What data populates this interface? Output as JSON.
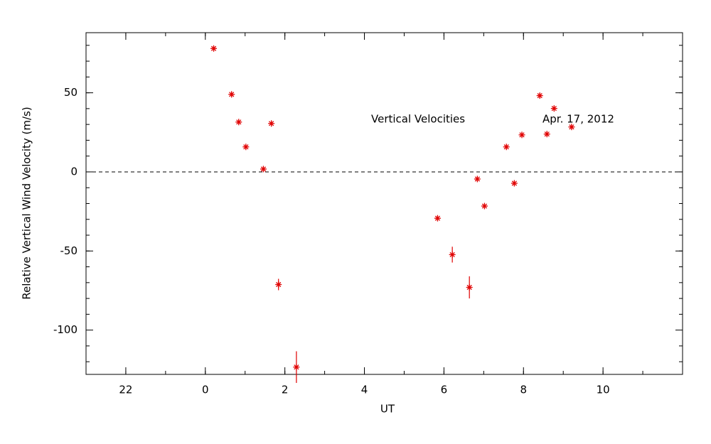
{
  "chart_data": {
    "type": "scatter",
    "xlabel": "UT",
    "ylabel": "Relative Vertical Wind Velocity (m/s)",
    "annotations": [
      "Vertical Velocities",
      "Apr. 17, 2012"
    ],
    "xlim": [
      -3,
      12
    ],
    "ylim": [
      -128,
      88
    ],
    "xticks": [
      {
        "value": -2,
        "label": "22"
      },
      0,
      2,
      4,
      6,
      8,
      10
    ],
    "yticks": [
      -100,
      -50,
      0,
      50
    ],
    "color": "#e00000",
    "series": [
      {
        "name": "Vertical Velocities",
        "x": [
          0.21,
          0.66,
          0.84,
          1.02,
          1.46,
          1.66,
          1.84,
          2.29,
          5.84,
          6.21,
          6.64,
          6.84,
          7.02,
          7.57,
          7.77,
          7.96,
          8.41,
          8.59,
          8.77,
          9.21
        ],
        "values": [
          78,
          49,
          31.5,
          15.8,
          1.8,
          30.6,
          -71.2,
          -123.4,
          -29.3,
          -52.3,
          -73,
          -4.5,
          -21.6,
          15.8,
          -7.2,
          23.4,
          48.2,
          23.9,
          40.1,
          28.4
        ],
        "errors": [
          1.5,
          1.5,
          1.5,
          1.5,
          1.5,
          1.5,
          3.6,
          10,
          1.5,
          5,
          7,
          1.5,
          1.5,
          1.5,
          1.5,
          1.5,
          1.5,
          1.5,
          1.5,
          1.5
        ]
      }
    ]
  }
}
